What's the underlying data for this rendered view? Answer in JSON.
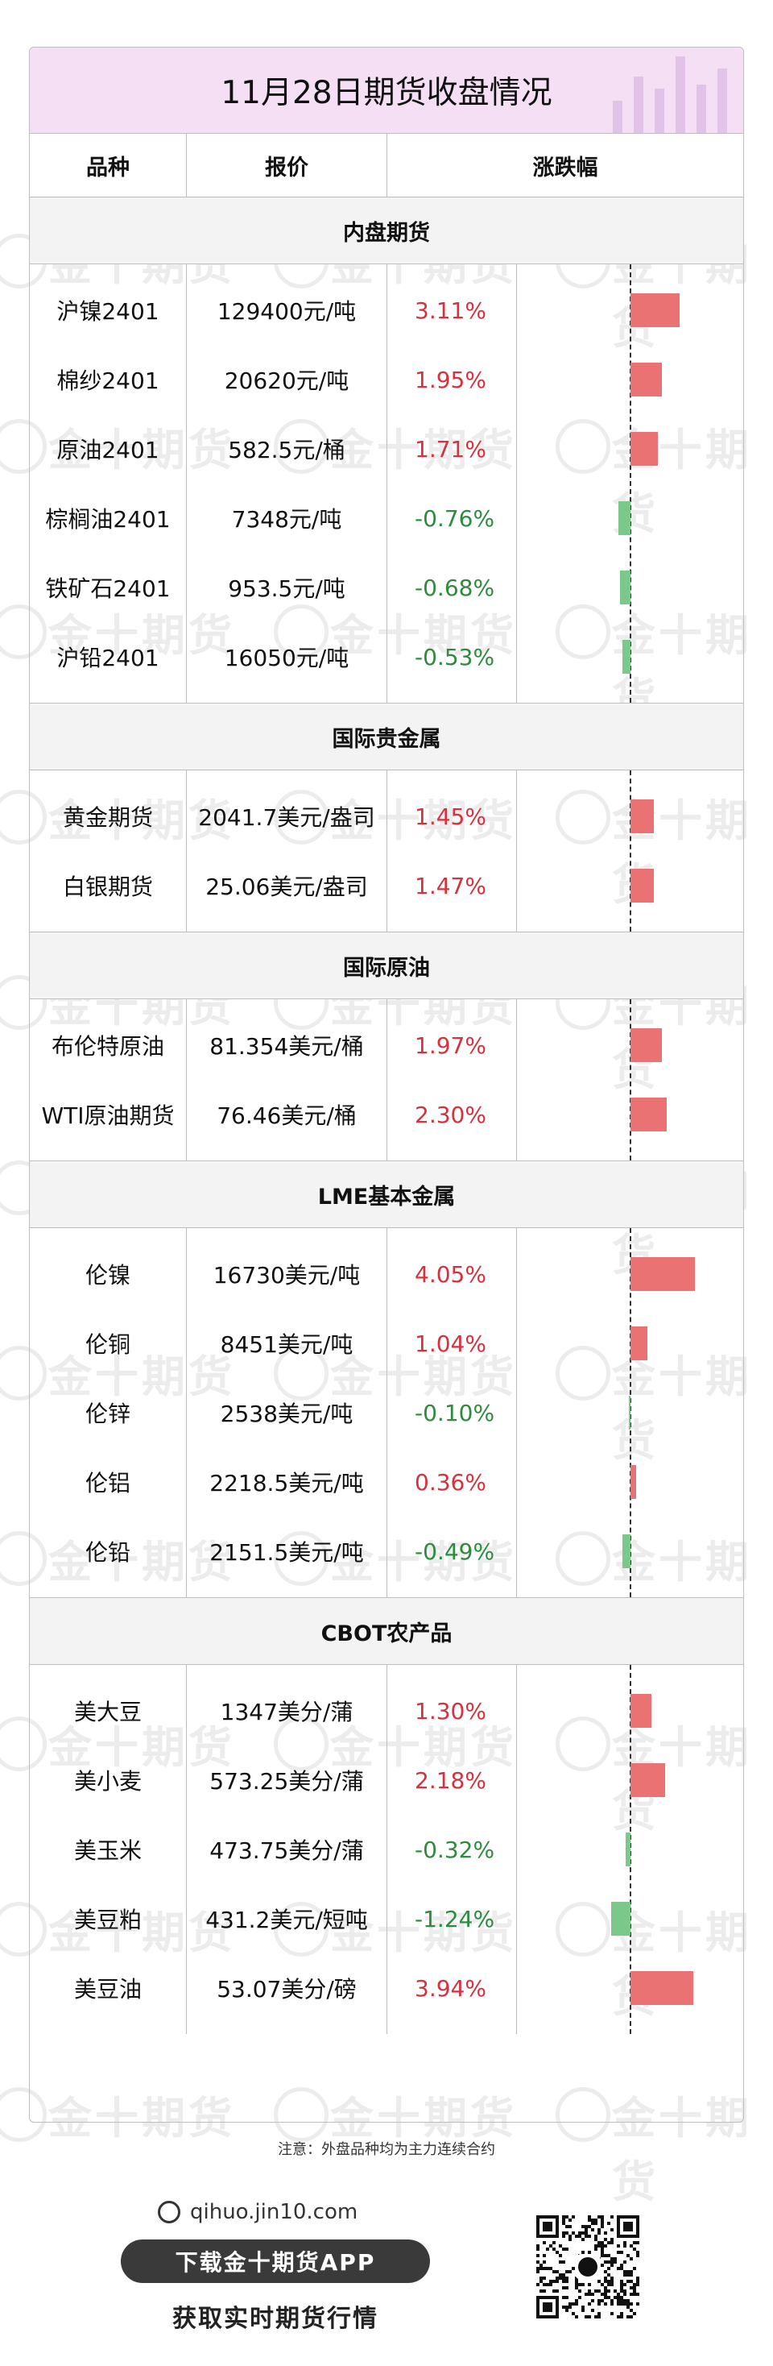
{
  "title": "11月28日期货收盘情况",
  "columns": [
    "品种",
    "报价",
    "涨跌幅"
  ],
  "watermark": "金十期货",
  "colors": {
    "up": "#d5323e",
    "down": "#2e8b3e",
    "bar_up": "#ea7273",
    "bar_down": "#7cc78a",
    "title_bg": "#f4dff4"
  },
  "sections": [
    {
      "name": "内盘期货",
      "rows": [
        {
          "name": "沪镍2401",
          "price": "129400元/吨",
          "change": "3.11%",
          "value": 3.11
        },
        {
          "name": "棉纱2401",
          "price": "20620元/吨",
          "change": "1.95%",
          "value": 1.95
        },
        {
          "name": "原油2401",
          "price": "582.5元/桶",
          "change": "1.71%",
          "value": 1.71
        },
        {
          "name": "棕榈油2401",
          "price": "7348元/吨",
          "change": "-0.76%",
          "value": -0.76
        },
        {
          "name": "铁矿石2401",
          "price": "953.5元/吨",
          "change": "-0.68%",
          "value": -0.68
        },
        {
          "name": "沪铅2401",
          "price": "16050元/吨",
          "change": "-0.53%",
          "value": -0.53
        }
      ]
    },
    {
      "name": "国际贵金属",
      "rows": [
        {
          "name": "黄金期货",
          "price": "2041.7美元/盎司",
          "change": "1.45%",
          "value": 1.45
        },
        {
          "name": "白银期货",
          "price": "25.06美元/盎司",
          "change": "1.47%",
          "value": 1.47
        }
      ]
    },
    {
      "name": "国际原油",
      "rows": [
        {
          "name": "布伦特原油",
          "price": "81.354美元/桶",
          "change": "1.97%",
          "value": 1.97
        },
        {
          "name": "WTI原油期货",
          "price": "76.46美元/桶",
          "change": "2.30%",
          "value": 2.3
        }
      ]
    },
    {
      "name": "LME基本金属",
      "rows": [
        {
          "name": "伦镍",
          "price": "16730美元/吨",
          "change": "4.05%",
          "value": 4.05
        },
        {
          "name": "伦铜",
          "price": "8451美元/吨",
          "change": "1.04%",
          "value": 1.04
        },
        {
          "name": "伦锌",
          "price": "2538美元/吨",
          "change": "-0.10%",
          "value": -0.1
        },
        {
          "name": "伦铝",
          "price": "2218.5美元/吨",
          "change": "0.36%",
          "value": 0.36
        },
        {
          "name": "伦铅",
          "price": "2151.5美元/吨",
          "change": "-0.49%",
          "value": -0.49
        }
      ]
    },
    {
      "name": "CBOT农产品",
      "rows": [
        {
          "name": "美大豆",
          "price": "1347美分/蒲",
          "change": "1.30%",
          "value": 1.3
        },
        {
          "name": "美小麦",
          "price": "573.25美分/蒲",
          "change": "2.18%",
          "value": 2.18
        },
        {
          "name": "美玉米",
          "price": "473.75美分/蒲",
          "change": "-0.32%",
          "value": -0.32
        },
        {
          "name": "美豆粕",
          "price": "431.2美元/短吨",
          "change": "-1.24%",
          "value": -1.24
        },
        {
          "name": "美豆油",
          "price": "53.07美分/磅",
          "change": "3.94%",
          "value": 3.94
        }
      ]
    }
  ],
  "note": "注意：外盘品种均为主力连续合约",
  "footer": {
    "site": "qihuo.jin10.com",
    "download_label": "下载金十期货APP",
    "slogan": "获取实时期货行情"
  }
}
